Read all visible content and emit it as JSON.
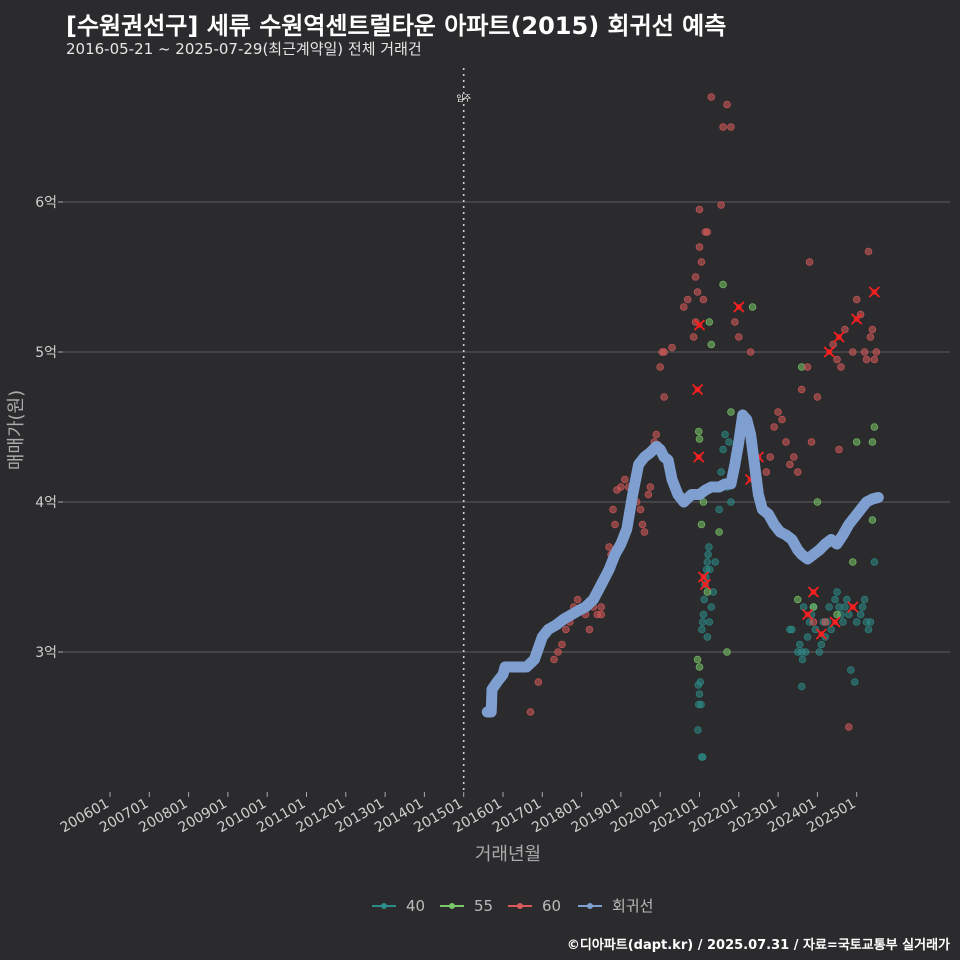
{
  "header": {
    "title": "[수원권선구] 세류 수원역센트럴타운 아파트(2015) 회귀선 예측",
    "subtitle": "2016-05-21 ~ 2025-07-29(최근계약일) 전체 거래건"
  },
  "footer": {
    "credit": "©디아파트(dapt.kr) / 2025.07.31 / 자료=국토교통부 실거래가"
  },
  "chart_data": {
    "type": "scatter",
    "xlabel": "거래년월",
    "ylabel": "매매가(원)",
    "x_range": [
      2005.5,
      2025.9
    ],
    "ylim": [
      2.1,
      6.95
    ],
    "x_ticks": [
      "200601",
      "200701",
      "200801",
      "200901",
      "201001",
      "201101",
      "201201",
      "201301",
      "201401",
      "201501",
      "201601",
      "201701",
      "201801",
      "201901",
      "202001",
      "202101",
      "202201",
      "202301",
      "202401",
      "202501"
    ],
    "y_ticks": [
      {
        "value": 3,
        "label": "3억"
      },
      {
        "value": 4,
        "label": "4억"
      },
      {
        "value": 5,
        "label": "5억"
      },
      {
        "value": 6,
        "label": "6억"
      }
    ],
    "grid": true,
    "legend_position": "bottom",
    "annotation": {
      "label": "입주",
      "x": 2015.0
    },
    "colors": {
      "40": "#2b8c88",
      "55": "#7ac968",
      "60": "#d75a5a",
      "regression": "#7e9fd0",
      "recent": "#ff2020"
    },
    "series": [
      {
        "name": "40",
        "points": [
          [
            2020.96,
            2.48
          ],
          [
            2020.98,
            2.65
          ],
          [
            2020.97,
            2.78
          ],
          [
            2021.0,
            2.72
          ],
          [
            2021.02,
            2.8
          ],
          [
            2021.04,
            2.65
          ],
          [
            2021.06,
            2.3
          ],
          [
            2021.08,
            2.3
          ],
          [
            2021.06,
            3.15
          ],
          [
            2021.08,
            3.2
          ],
          [
            2021.1,
            3.25
          ],
          [
            2021.12,
            3.35
          ],
          [
            2021.14,
            3.45
          ],
          [
            2021.16,
            3.5
          ],
          [
            2021.18,
            3.55
          ],
          [
            2021.2,
            3.6
          ],
          [
            2021.22,
            3.65
          ],
          [
            2021.24,
            3.7
          ],
          [
            2021.26,
            3.55
          ],
          [
            2021.2,
            3.1
          ],
          [
            2021.25,
            3.2
          ],
          [
            2021.3,
            3.3
          ],
          [
            2021.35,
            3.4
          ],
          [
            2021.4,
            3.6
          ],
          [
            2021.5,
            3.95
          ],
          [
            2021.55,
            4.2
          ],
          [
            2021.6,
            4.35
          ],
          [
            2021.65,
            4.45
          ],
          [
            2021.75,
            4.4
          ],
          [
            2021.8,
            4.0
          ],
          [
            2021.7,
            4.1
          ],
          [
            2023.3,
            3.15
          ],
          [
            2023.35,
            3.15
          ],
          [
            2023.5,
            3.0
          ],
          [
            2023.55,
            3.05
          ],
          [
            2023.6,
            3.0
          ],
          [
            2023.62,
            2.95
          ],
          [
            2023.65,
            3.3
          ],
          [
            2023.7,
            3.0
          ],
          [
            2023.75,
            3.1
          ],
          [
            2023.8,
            3.2
          ],
          [
            2023.85,
            3.25
          ],
          [
            2023.9,
            3.3
          ],
          [
            2023.95,
            3.15
          ],
          [
            2024.05,
            3.0
          ],
          [
            2024.1,
            3.05
          ],
          [
            2024.15,
            3.2
          ],
          [
            2024.2,
            3.1
          ],
          [
            2024.25,
            3.2
          ],
          [
            2024.3,
            3.3
          ],
          [
            2024.35,
            3.15
          ],
          [
            2024.45,
            3.35
          ],
          [
            2024.5,
            3.4
          ],
          [
            2024.55,
            3.3
          ],
          [
            2024.6,
            3.25
          ],
          [
            2024.65,
            3.2
          ],
          [
            2024.7,
            3.3
          ],
          [
            2024.75,
            3.35
          ],
          [
            2024.8,
            3.25
          ],
          [
            2024.85,
            2.88
          ],
          [
            2024.95,
            2.8
          ],
          [
            2025.0,
            3.2
          ],
          [
            2025.1,
            3.25
          ],
          [
            2025.15,
            3.3
          ],
          [
            2025.2,
            3.35
          ],
          [
            2025.25,
            3.2
          ],
          [
            2025.3,
            3.15
          ],
          [
            2025.35,
            3.2
          ],
          [
            2025.45,
            3.6
          ],
          [
            2023.6,
            2.77
          ]
        ]
      },
      {
        "name": "55",
        "points": [
          [
            2020.98,
            4.47
          ],
          [
            2021.0,
            4.42
          ],
          [
            2021.05,
            3.85
          ],
          [
            2021.1,
            4.0
          ],
          [
            2021.2,
            3.4
          ],
          [
            2021.25,
            5.2
          ],
          [
            2021.3,
            5.05
          ],
          [
            2021.5,
            3.8
          ],
          [
            2021.6,
            5.45
          ],
          [
            2021.7,
            3.0
          ],
          [
            2021.8,
            4.6
          ],
          [
            2022.35,
            5.3
          ],
          [
            2023.5,
            3.35
          ],
          [
            2023.6,
            4.9
          ],
          [
            2023.9,
            3.3
          ],
          [
            2024.0,
            4.0
          ],
          [
            2024.5,
            3.25
          ],
          [
            2024.9,
            3.6
          ],
          [
            2025.0,
            4.4
          ],
          [
            2025.4,
            4.4
          ],
          [
            2025.45,
            4.5
          ],
          [
            2025.4,
            3.88
          ],
          [
            2020.95,
            2.95
          ],
          [
            2021.0,
            2.9
          ]
        ]
      },
      {
        "name": "60",
        "points": [
          [
            2016.7,
            2.6
          ],
          [
            2016.9,
            2.8
          ],
          [
            2017.3,
            2.95
          ],
          [
            2017.4,
            3.0
          ],
          [
            2017.5,
            3.05
          ],
          [
            2017.6,
            3.15
          ],
          [
            2017.7,
            3.2
          ],
          [
            2017.8,
            3.3
          ],
          [
            2017.9,
            3.35
          ],
          [
            2018.0,
            3.3
          ],
          [
            2018.1,
            3.25
          ],
          [
            2018.2,
            3.15
          ],
          [
            2018.3,
            3.3
          ],
          [
            2018.4,
            3.25
          ],
          [
            2018.5,
            3.3
          ],
          [
            2018.5,
            3.25
          ],
          [
            2018.7,
            3.7
          ],
          [
            2018.75,
            3.65
          ],
          [
            2018.8,
            3.95
          ],
          [
            2018.85,
            3.85
          ],
          [
            2018.9,
            4.08
          ],
          [
            2019.0,
            4.1
          ],
          [
            2019.1,
            4.15
          ],
          [
            2019.2,
            4.1
          ],
          [
            2019.4,
            4.0
          ],
          [
            2019.5,
            3.95
          ],
          [
            2019.55,
            3.85
          ],
          [
            2019.6,
            3.8
          ],
          [
            2019.7,
            4.05
          ],
          [
            2019.75,
            4.1
          ],
          [
            2019.85,
            4.4
          ],
          [
            2019.9,
            4.45
          ],
          [
            2019.95,
            4.38
          ],
          [
            2020.0,
            4.9
          ],
          [
            2020.05,
            5.0
          ],
          [
            2020.1,
            4.7
          ],
          [
            2020.1,
            5.0
          ],
          [
            2020.3,
            5.03
          ],
          [
            2020.6,
            5.3
          ],
          [
            2020.7,
            5.35
          ],
          [
            2020.85,
            5.1
          ],
          [
            2020.9,
            5.2
          ],
          [
            2020.9,
            5.5
          ],
          [
            2020.95,
            5.4
          ],
          [
            2021.0,
            5.95
          ],
          [
            2021.0,
            5.7
          ],
          [
            2021.05,
            5.6
          ],
          [
            2021.1,
            5.35
          ],
          [
            2021.15,
            5.8
          ],
          [
            2021.2,
            5.8
          ],
          [
            2021.3,
            6.7
          ],
          [
            2021.55,
            5.98
          ],
          [
            2021.6,
            6.5
          ],
          [
            2021.7,
            6.65
          ],
          [
            2021.8,
            6.5
          ],
          [
            2021.9,
            5.2
          ],
          [
            2022.0,
            5.1
          ],
          [
            2022.3,
            5.0
          ],
          [
            2022.4,
            4.2
          ],
          [
            2022.5,
            4.15
          ],
          [
            2022.7,
            4.2
          ],
          [
            2022.8,
            4.3
          ],
          [
            2022.9,
            4.5
          ],
          [
            2023.0,
            4.6
          ],
          [
            2023.1,
            4.55
          ],
          [
            2023.2,
            4.4
          ],
          [
            2023.3,
            4.25
          ],
          [
            2023.4,
            4.3
          ],
          [
            2023.5,
            4.2
          ],
          [
            2023.6,
            4.75
          ],
          [
            2023.75,
            4.9
          ],
          [
            2023.8,
            5.6
          ],
          [
            2023.85,
            4.4
          ],
          [
            2023.9,
            3.2
          ],
          [
            2024.0,
            4.7
          ],
          [
            2024.2,
            3.2
          ],
          [
            2024.4,
            5.05
          ],
          [
            2024.5,
            4.95
          ],
          [
            2024.55,
            4.35
          ],
          [
            2024.6,
            4.9
          ],
          [
            2024.7,
            5.15
          ],
          [
            2024.8,
            2.5
          ],
          [
            2024.9,
            5.0
          ],
          [
            2025.0,
            5.35
          ],
          [
            2025.1,
            5.25
          ],
          [
            2025.2,
            5.0
          ],
          [
            2025.25,
            4.95
          ],
          [
            2025.3,
            5.67
          ],
          [
            2025.35,
            5.1
          ],
          [
            2025.4,
            5.15
          ],
          [
            2025.45,
            4.95
          ],
          [
            2025.5,
            5.0
          ]
        ]
      }
    ],
    "recent": [
      [
        2020.95,
        4.75
      ],
      [
        2020.98,
        4.3
      ],
      [
        2021.0,
        5.18
      ],
      [
        2021.1,
        3.5
      ],
      [
        2021.15,
        3.45
      ],
      [
        2022.0,
        5.3
      ],
      [
        2022.3,
        4.15
      ],
      [
        2022.5,
        4.3
      ],
      [
        2023.75,
        3.25
      ],
      [
        2023.9,
        3.4
      ],
      [
        2024.1,
        3.12
      ],
      [
        2024.3,
        5.0
      ],
      [
        2024.45,
        3.2
      ],
      [
        2024.55,
        5.1
      ],
      [
        2024.9,
        3.3
      ],
      [
        2025.0,
        5.22
      ],
      [
        2025.45,
        5.4
      ]
    ],
    "regression": [
      [
        2015.6,
        2.6
      ],
      [
        2015.7,
        2.6
      ],
      [
        2015.72,
        2.75
      ],
      [
        2015.85,
        2.8
      ],
      [
        2016.0,
        2.85
      ],
      [
        2016.05,
        2.9
      ],
      [
        2016.3,
        2.9
      ],
      [
        2016.6,
        2.9
      ],
      [
        2016.8,
        2.95
      ],
      [
        2017.0,
        3.1
      ],
      [
        2017.15,
        3.15
      ],
      [
        2017.35,
        3.18
      ],
      [
        2017.55,
        3.22
      ],
      [
        2017.75,
        3.25
      ],
      [
        2017.95,
        3.28
      ],
      [
        2018.1,
        3.3
      ],
      [
        2018.3,
        3.35
      ],
      [
        2018.5,
        3.45
      ],
      [
        2018.7,
        3.55
      ],
      [
        2018.85,
        3.65
      ],
      [
        2019.0,
        3.72
      ],
      [
        2019.15,
        3.82
      ],
      [
        2019.3,
        4.05
      ],
      [
        2019.45,
        4.25
      ],
      [
        2019.6,
        4.3
      ],
      [
        2019.75,
        4.33
      ],
      [
        2019.9,
        4.37
      ],
      [
        2020.0,
        4.35
      ],
      [
        2020.1,
        4.3
      ],
      [
        2020.2,
        4.28
      ],
      [
        2020.3,
        4.15
      ],
      [
        2020.45,
        4.05
      ],
      [
        2020.6,
        4.0
      ],
      [
        2020.8,
        4.05
      ],
      [
        2021.0,
        4.05
      ],
      [
        2021.15,
        4.08
      ],
      [
        2021.3,
        4.1
      ],
      [
        2021.5,
        4.1
      ],
      [
        2021.65,
        4.12
      ],
      [
        2021.8,
        4.12
      ],
      [
        2021.9,
        4.25
      ],
      [
        2022.0,
        4.4
      ],
      [
        2022.1,
        4.58
      ],
      [
        2022.2,
        4.55
      ],
      [
        2022.3,
        4.45
      ],
      [
        2022.4,
        4.25
      ],
      [
        2022.5,
        4.05
      ],
      [
        2022.6,
        3.95
      ],
      [
        2022.75,
        3.92
      ],
      [
        2022.9,
        3.85
      ],
      [
        2023.05,
        3.8
      ],
      [
        2023.2,
        3.78
      ],
      [
        2023.35,
        3.75
      ],
      [
        2023.5,
        3.68
      ],
      [
        2023.6,
        3.65
      ],
      [
        2023.75,
        3.62
      ],
      [
        2023.9,
        3.65
      ],
      [
        2024.05,
        3.68
      ],
      [
        2024.2,
        3.72
      ],
      [
        2024.35,
        3.75
      ],
      [
        2024.5,
        3.72
      ],
      [
        2024.65,
        3.78
      ],
      [
        2024.8,
        3.85
      ],
      [
        2024.95,
        3.9
      ],
      [
        2025.1,
        3.95
      ],
      [
        2025.25,
        4.0
      ],
      [
        2025.4,
        4.02
      ],
      [
        2025.55,
        4.03
      ]
    ]
  }
}
